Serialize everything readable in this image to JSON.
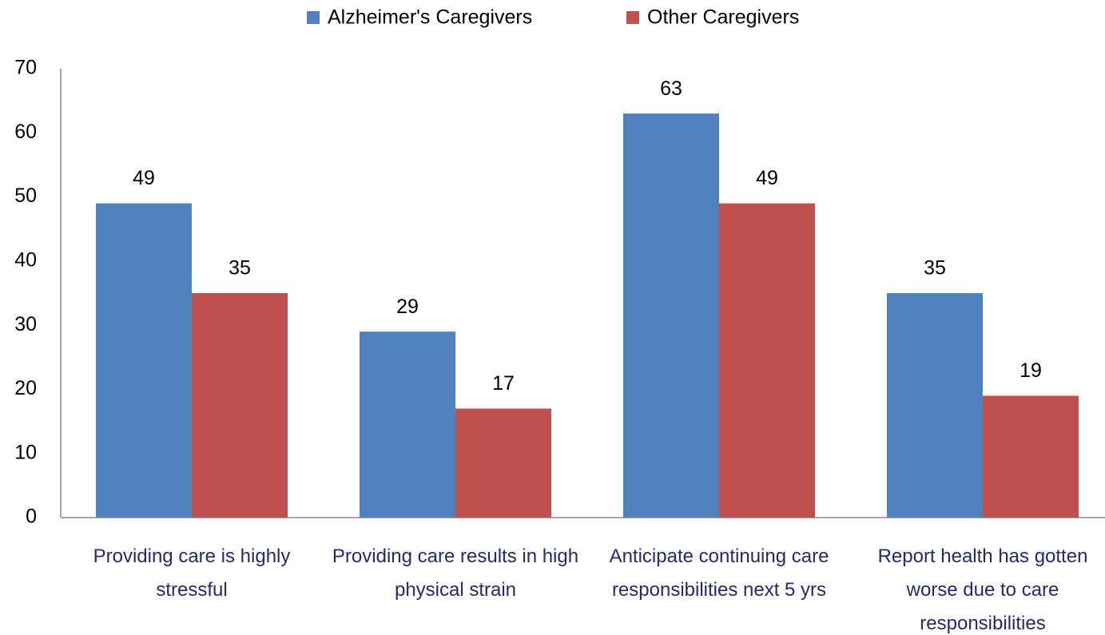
{
  "chart_data": {
    "type": "bar",
    "categories": [
      "Providing care is highly stressful",
      "Providing care results in high physical strain",
      "Anticipate continuing care responsibilities next 5 yrs",
      "Report health has gotten worse due to care responsibilities"
    ],
    "series": [
      {
        "name": "Alzheimer's Caregivers",
        "color": "#4f81bd",
        "values": [
          49,
          29,
          63,
          35
        ]
      },
      {
        "name": "Other Caregivers",
        "color": "#c0504d",
        "values": [
          35,
          17,
          49,
          19
        ]
      }
    ],
    "ylim": [
      0,
      70
    ],
    "yticks": [
      0,
      10,
      20,
      30,
      40,
      50,
      60,
      70
    ],
    "grid": false,
    "legend": "top"
  }
}
